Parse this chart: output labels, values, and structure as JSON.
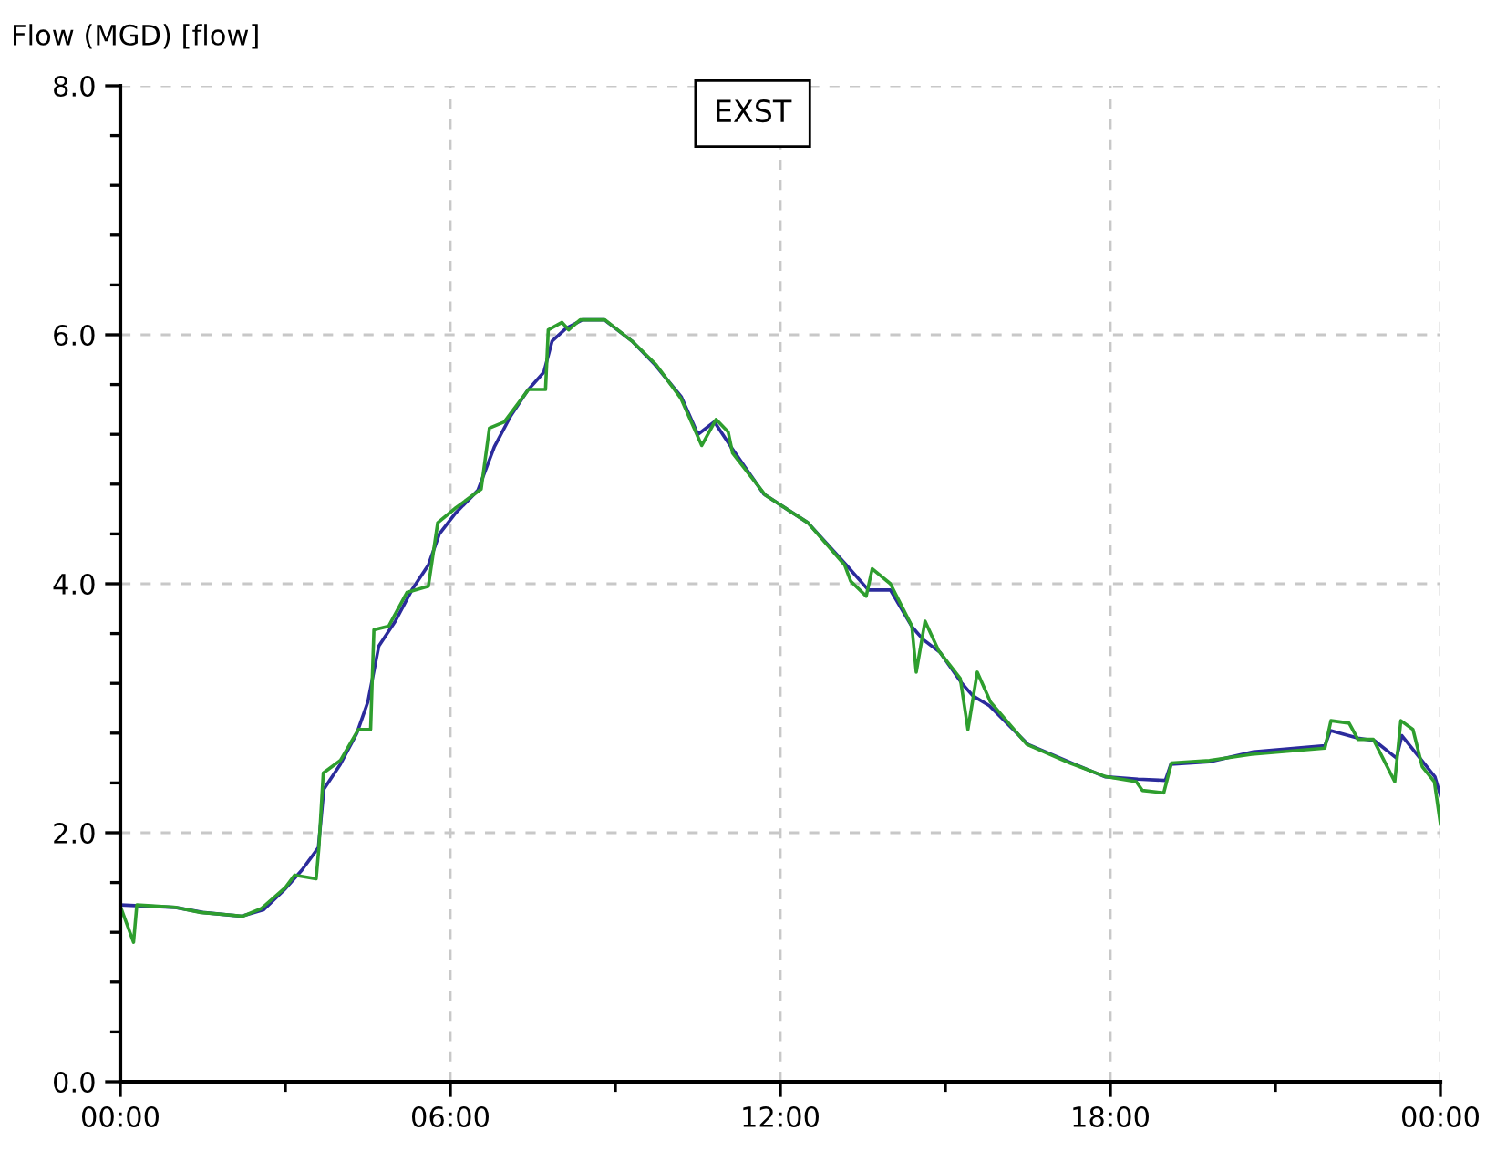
{
  "chart_data": {
    "type": "line",
    "ylabel": "Flow (MGD) [flow]",
    "annotations": [
      "EXST"
    ],
    "xlim": [
      0,
      24
    ],
    "ylim": [
      0,
      8
    ],
    "xticks": [
      {
        "value": 0,
        "label": "00:00"
      },
      {
        "value": 3,
        "label": null
      },
      {
        "value": 6,
        "label": "06:00"
      },
      {
        "value": 9,
        "label": null
      },
      {
        "value": 12,
        "label": "12:00"
      },
      {
        "value": 15,
        "label": null
      },
      {
        "value": 18,
        "label": "18:00"
      },
      {
        "value": 21,
        "label": null
      },
      {
        "value": 24,
        "label": "00:00"
      }
    ],
    "yticks": [
      {
        "value": 0,
        "label": "0.0"
      },
      {
        "value": 0.4,
        "label": null
      },
      {
        "value": 0.8,
        "label": null
      },
      {
        "value": 1.2,
        "label": null
      },
      {
        "value": 1.6,
        "label": null
      },
      {
        "value": 2,
        "label": "2.0"
      },
      {
        "value": 2.4,
        "label": null
      },
      {
        "value": 2.8,
        "label": null
      },
      {
        "value": 3.2,
        "label": null
      },
      {
        "value": 3.6,
        "label": null
      },
      {
        "value": 4,
        "label": "4.0"
      },
      {
        "value": 4.4,
        "label": null
      },
      {
        "value": 4.8,
        "label": null
      },
      {
        "value": 5.2,
        "label": null
      },
      {
        "value": 5.6,
        "label": null
      },
      {
        "value": 6,
        "label": "6.0"
      },
      {
        "value": 6.4,
        "label": null
      },
      {
        "value": 6.8,
        "label": null
      },
      {
        "value": 7.2,
        "label": null
      },
      {
        "value": 7.6,
        "label": null
      },
      {
        "value": 8,
        "label": "8.0"
      }
    ],
    "grid": true,
    "legend": false,
    "line_style": "solid",
    "marker": "none",
    "series": [
      {
        "color": "#2b2b9c",
        "x": [
          0,
          1,
          1.5,
          2.2,
          2.6,
          3,
          3.3,
          3.6,
          3.7,
          4.0,
          4.3,
          4.5,
          4.7,
          5.0,
          5.3,
          5.6,
          5.8,
          6.1,
          6.5,
          6.8,
          7.1,
          7.4,
          7.7,
          7.85,
          8.1,
          8.4,
          8.8,
          9.3,
          9.7,
          10.2,
          10.5,
          10.8,
          11.1,
          11.7,
          12.5,
          13.2,
          13.6,
          14.0,
          14.4,
          14.6,
          14.9,
          15.3,
          15.5,
          15.8,
          16.5,
          17.3,
          17.9,
          18.5,
          19.0,
          19.1,
          19.8,
          20.6,
          21.9,
          22.0,
          22.5,
          22.8,
          23.2,
          23.3,
          23.9,
          24
        ],
        "values": [
          1.42,
          1.4,
          1.36,
          1.33,
          1.38,
          1.55,
          1.7,
          1.88,
          2.35,
          2.55,
          2.8,
          3.05,
          3.5,
          3.7,
          3.95,
          4.15,
          4.4,
          4.57,
          4.75,
          5.1,
          5.35,
          5.55,
          5.7,
          5.95,
          6.05,
          6.12,
          6.12,
          5.95,
          5.77,
          5.5,
          5.2,
          5.3,
          5.1,
          4.72,
          4.49,
          4.15,
          3.95,
          3.95,
          3.65,
          3.55,
          3.45,
          3.2,
          3.1,
          3.02,
          2.71,
          2.56,
          2.45,
          2.43,
          2.42,
          2.55,
          2.57,
          2.65,
          2.7,
          2.82,
          2.76,
          2.74,
          2.6,
          2.78,
          2.45,
          2.3
        ]
      },
      {
        "color": "#2e9e2e",
        "x": [
          0,
          0.24,
          0.3,
          1.02,
          1.46,
          2.23,
          2.56,
          3.0,
          3.17,
          3.56,
          3.61,
          3.69,
          4.0,
          4.33,
          4.55,
          4.61,
          4.88,
          5.21,
          5.6,
          5.77,
          6.1,
          6.56,
          6.71,
          6.98,
          7.42,
          7.73,
          7.78,
          8.03,
          8.15,
          8.36,
          8.81,
          9.3,
          9.74,
          10.19,
          10.57,
          10.83,
          11.05,
          11.13,
          11.73,
          12.5,
          13.17,
          13.28,
          13.56,
          13.67,
          14.0,
          14.39,
          14.47,
          14.63,
          14.88,
          15.27,
          15.41,
          15.58,
          15.82,
          16.48,
          17.26,
          17.92,
          18.47,
          18.58,
          18.97,
          19.11,
          19.8,
          20.57,
          21.9,
          22.01,
          22.34,
          22.5,
          22.78,
          23.17,
          23.28,
          23.5,
          23.67,
          23.89,
          24
        ],
        "values": [
          1.41,
          1.12,
          1.42,
          1.4,
          1.36,
          1.33,
          1.39,
          1.56,
          1.66,
          1.63,
          1.88,
          2.48,
          2.58,
          2.83,
          2.83,
          3.63,
          3.66,
          3.93,
          3.98,
          4.49,
          4.61,
          4.76,
          5.25,
          5.3,
          5.56,
          5.56,
          6.04,
          6.1,
          6.04,
          6.12,
          6.12,
          5.95,
          5.76,
          5.49,
          5.11,
          5.32,
          5.22,
          5.05,
          4.71,
          4.49,
          4.15,
          4.02,
          3.9,
          4.12,
          4.0,
          3.66,
          3.29,
          3.7,
          3.46,
          3.24,
          2.83,
          3.29,
          3.05,
          2.71,
          2.56,
          2.45,
          2.41,
          2.34,
          2.32,
          2.56,
          2.58,
          2.63,
          2.68,
          2.9,
          2.88,
          2.75,
          2.75,
          2.41,
          2.9,
          2.83,
          2.53,
          2.41,
          2.07
        ]
      }
    ]
  }
}
